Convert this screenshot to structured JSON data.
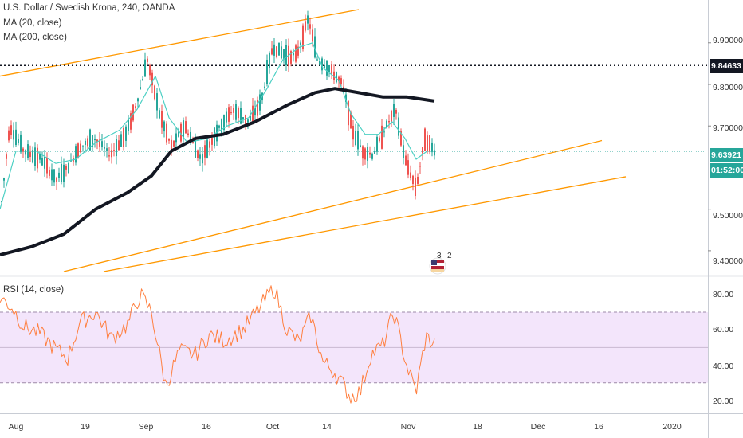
{
  "legend": {
    "symbol": "U.S. Dollar / Swedish Krona, 240, OANDA",
    "ma20": "MA (20, close)",
    "ma200": "MA (200, close)",
    "rsi": "RSI (14, close)"
  },
  "price_axis": {
    "ticks": [
      "9.90000",
      "9.80000",
      "9.70000",
      "9.50000",
      "9.40000"
    ]
  },
  "rsi_axis": {
    "ticks": [
      "80.00",
      "60.00",
      "40.00",
      "20.00"
    ]
  },
  "time_axis": {
    "ticks": [
      "Aug",
      "19",
      "Sep",
      "16",
      "Oct",
      "14",
      "Nov",
      "18",
      "Dec",
      "16",
      "2020"
    ]
  },
  "markers": {
    "horizontal_level": "9.84633",
    "last_price": "9.63921",
    "countdown": "01:52:00"
  },
  "events": {
    "a": "3",
    "b": "2"
  },
  "colors": {
    "up_candle": "#26a69a",
    "down_candle": "#ef5350",
    "ma20": "#4dd0c4",
    "ma200": "#131722",
    "trendline": "#ff9800",
    "rsi_line": "#ff7f3f",
    "rsi_band": "#f3e5fb"
  },
  "chart_data": {
    "type": "line",
    "title": "U.S. Dollar / Swedish Krona, 240, OANDA",
    "y_range": [
      9.35,
      9.98
    ],
    "rsi_range": [
      15,
      88
    ],
    "rsi_bands": [
      30,
      70
    ],
    "series": [
      {
        "name": "U.S. Dollar / Swedish Krona",
        "points": [
          [
            0,
            9.48
          ],
          [
            12,
            9.7
          ],
          [
            30,
            9.64
          ],
          [
            52,
            9.62
          ],
          [
            70,
            9.57
          ],
          [
            85,
            9.6
          ],
          [
            100,
            9.65
          ],
          [
            120,
            9.67
          ],
          [
            138,
            9.63
          ],
          [
            158,
            9.68
          ],
          [
            172,
            9.76
          ],
          [
            185,
            9.86
          ],
          [
            200,
            9.73
          ],
          [
            215,
            9.65
          ],
          [
            232,
            9.7
          ],
          [
            252,
            9.62
          ],
          [
            270,
            9.68
          ],
          [
            292,
            9.74
          ],
          [
            312,
            9.71
          ],
          [
            328,
            9.76
          ],
          [
            342,
            9.89
          ],
          [
            358,
            9.87
          ],
          [
            372,
            9.87
          ],
          [
            387,
            9.96
          ],
          [
            398,
            9.86
          ],
          [
            412,
            9.84
          ],
          [
            430,
            9.8
          ],
          [
            442,
            9.69
          ],
          [
            455,
            9.64
          ],
          [
            468,
            9.63
          ],
          [
            482,
            9.69
          ],
          [
            496,
            9.74
          ],
          [
            508,
            9.62
          ],
          [
            522,
            9.55
          ],
          [
            533,
            9.67
          ],
          [
            545,
            9.64
          ]
        ]
      },
      {
        "name": "MA (20, close)",
        "points": [
          [
            0,
            9.5
          ],
          [
            20,
            9.64
          ],
          [
            45,
            9.64
          ],
          [
            70,
            9.61
          ],
          [
            95,
            9.62
          ],
          [
            120,
            9.66
          ],
          [
            150,
            9.69
          ],
          [
            172,
            9.74
          ],
          [
            195,
            9.82
          ],
          [
            212,
            9.72
          ],
          [
            235,
            9.66
          ],
          [
            260,
            9.67
          ],
          [
            285,
            9.7
          ],
          [
            312,
            9.72
          ],
          [
            335,
            9.79
          ],
          [
            355,
            9.86
          ],
          [
            376,
            9.89
          ],
          [
            392,
            9.9
          ],
          [
            405,
            9.84
          ],
          [
            425,
            9.81
          ],
          [
            440,
            9.73
          ],
          [
            458,
            9.68
          ],
          [
            475,
            9.68
          ],
          [
            492,
            9.71
          ],
          [
            508,
            9.67
          ],
          [
            522,
            9.62
          ],
          [
            536,
            9.64
          ],
          [
            545,
            9.64
          ]
        ]
      },
      {
        "name": "MA (200, close)",
        "points": [
          [
            0,
            9.39
          ],
          [
            40,
            9.41
          ],
          [
            80,
            9.44
          ],
          [
            120,
            9.5
          ],
          [
            160,
            9.54
          ],
          [
            190,
            9.58
          ],
          [
            215,
            9.64
          ],
          [
            245,
            9.67
          ],
          [
            280,
            9.68
          ],
          [
            320,
            9.71
          ],
          [
            360,
            9.75
          ],
          [
            395,
            9.78
          ],
          [
            420,
            9.79
          ],
          [
            450,
            9.78
          ],
          [
            480,
            9.77
          ],
          [
            510,
            9.77
          ],
          [
            545,
            9.76
          ]
        ]
      },
      {
        "name": "RSI (14, close)",
        "points": [
          [
            0,
            78
          ],
          [
            15,
            73
          ],
          [
            30,
            62
          ],
          [
            50,
            58
          ],
          [
            70,
            49
          ],
          [
            85,
            44
          ],
          [
            100,
            64
          ],
          [
            120,
            70
          ],
          [
            140,
            55
          ],
          [
            160,
            63
          ],
          [
            176,
            80
          ],
          [
            190,
            70
          ],
          [
            208,
            28
          ],
          [
            225,
            48
          ],
          [
            245,
            46
          ],
          [
            262,
            57
          ],
          [
            282,
            54
          ],
          [
            305,
            60
          ],
          [
            328,
            74
          ],
          [
            344,
            84
          ],
          [
            360,
            60
          ],
          [
            375,
            53
          ],
          [
            390,
            68
          ],
          [
            405,
            42
          ],
          [
            420,
            36
          ],
          [
            440,
            22
          ],
          [
            452,
            25
          ],
          [
            465,
            46
          ],
          [
            480,
            51
          ],
          [
            494,
            70
          ],
          [
            510,
            40
          ],
          [
            522,
            25
          ],
          [
            534,
            56
          ],
          [
            545,
            52
          ]
        ]
      }
    ]
  }
}
